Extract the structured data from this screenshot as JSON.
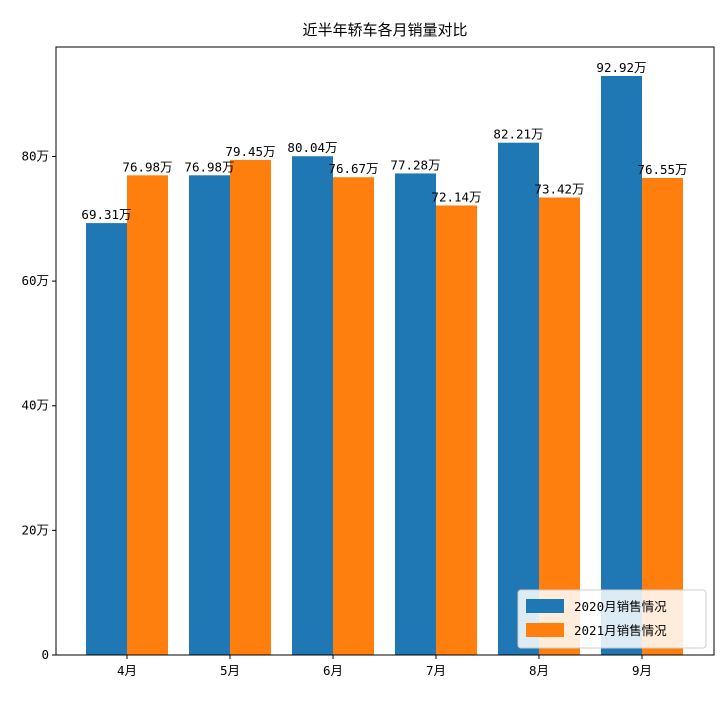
{
  "chart_data": {
    "type": "bar",
    "title": "近半年轿车各月销量对比",
    "xlabel": "",
    "ylabel": "",
    "categories": [
      "4月",
      "5月",
      "6月",
      "7月",
      "8月",
      "9月"
    ],
    "series": [
      {
        "name": "2020月销售情况",
        "color": "#1f77b4",
        "values": [
          69.31,
          76.98,
          80.04,
          77.28,
          82.21,
          92.92
        ],
        "labels": [
          "69.31万",
          "76.98万",
          "80.04万",
          "77.28万",
          "82.21万",
          "92.92万"
        ]
      },
      {
        "name": "2021月销售情况",
        "color": "#ff7f0e",
        "values": [
          76.98,
          79.45,
          76.67,
          72.14,
          73.42,
          76.55
        ],
        "labels": [
          "76.98万",
          "79.45万",
          "76.67万",
          "72.14万",
          "73.42万",
          "76.55万"
        ]
      }
    ],
    "ylim": [
      0,
      97.57
    ],
    "yticks": [
      0,
      20,
      40,
      60,
      80
    ],
    "ytick_labels": [
      "0",
      "20万",
      "40万",
      "60万",
      "80万"
    ],
    "grid": false,
    "legend_position": "bottom-right"
  }
}
